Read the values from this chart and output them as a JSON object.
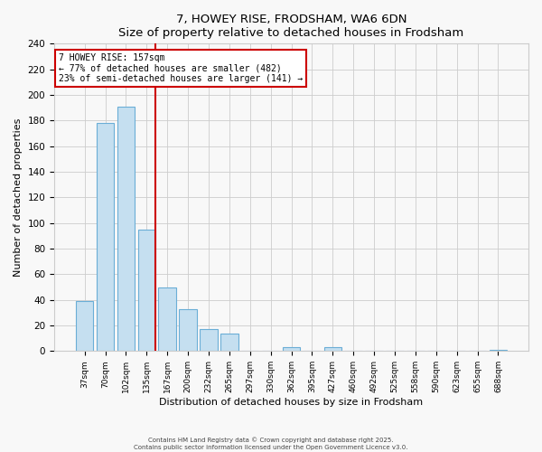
{
  "title": "7, HOWEY RISE, FRODSHAM, WA6 6DN",
  "subtitle": "Size of property relative to detached houses in Frodsham",
  "xlabel": "Distribution of detached houses by size in Frodsham",
  "ylabel": "Number of detached properties",
  "bar_labels": [
    "37sqm",
    "70sqm",
    "102sqm",
    "135sqm",
    "167sqm",
    "200sqm",
    "232sqm",
    "265sqm",
    "297sqm",
    "330sqm",
    "362sqm",
    "395sqm",
    "427sqm",
    "460sqm",
    "492sqm",
    "525sqm",
    "558sqm",
    "590sqm",
    "623sqm",
    "655sqm",
    "688sqm"
  ],
  "bar_heights": [
    39,
    178,
    191,
    95,
    50,
    33,
    17,
    14,
    0,
    0,
    3,
    0,
    3,
    0,
    0,
    0,
    0,
    0,
    0,
    0,
    1
  ],
  "bar_color": "#c5dff0",
  "bar_edge_color": "#6aaed6",
  "reference_line_color": "#cc0000",
  "annotation_title": "7 HOWEY RISE: 157sqm",
  "annotation_line1": "← 77% of detached houses are smaller (482)",
  "annotation_line2": "23% of semi-detached houses are larger (141) →",
  "annotation_box_color": "#ffffff",
  "annotation_box_edge": "#cc0000",
  "ylim": [
    0,
    240
  ],
  "yticks": [
    0,
    20,
    40,
    60,
    80,
    100,
    120,
    140,
    160,
    180,
    200,
    220,
    240
  ],
  "background_color": "#f8f8f8",
  "grid_color": "#cccccc",
  "footer_line1": "Contains HM Land Registry data © Crown copyright and database right 2025.",
  "footer_line2": "Contains public sector information licensed under the Open Government Licence v3.0."
}
